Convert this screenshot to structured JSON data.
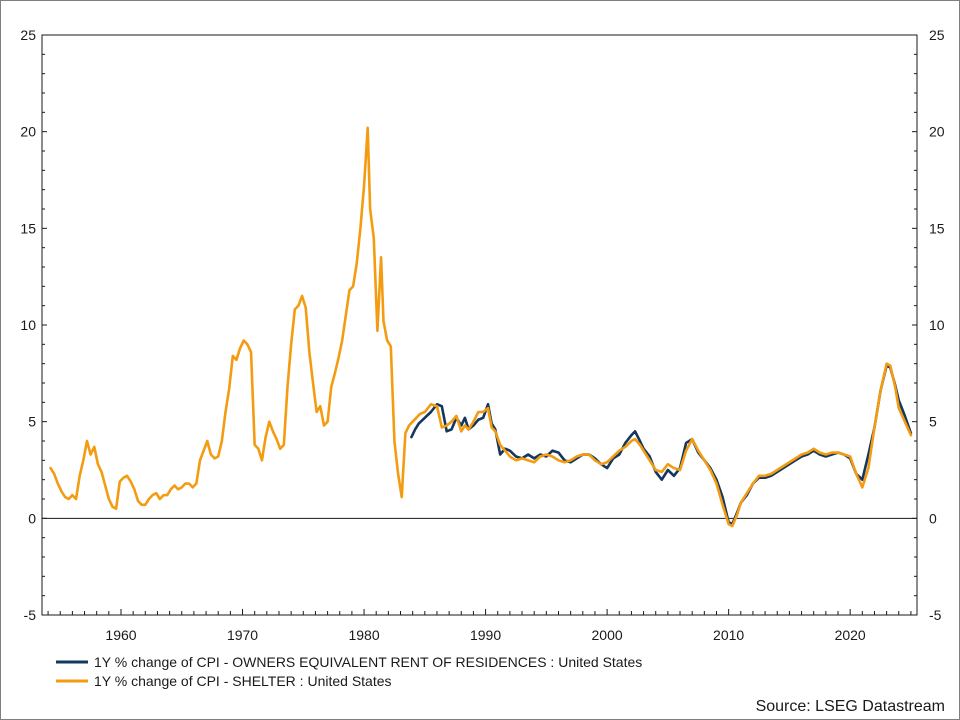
{
  "chart_data": {
    "type": "line",
    "title": "",
    "xlabel": "",
    "ylabel": "",
    "xlim": [
      1953.5,
      2025.5
    ],
    "ylim": [
      -5,
      25
    ],
    "yticks": [
      -5,
      0,
      5,
      10,
      15,
      20,
      25
    ],
    "xticks": [
      1960,
      1970,
      1980,
      1990,
      2000,
      2010,
      2020
    ],
    "grid": false,
    "zero_line": true,
    "y_axis_right_mirror": true,
    "legend_position": "bottom-left",
    "source": "Source: LSEG Datastream",
    "series": [
      {
        "name": "1Y % change of CPI - OWNERS EQUIVALENT RENT OF RESIDENCES : United States",
        "color": "#14375e",
        "x": [
          1983.9,
          1984.2,
          1984.5,
          1985,
          1985.5,
          1986,
          1986.4,
          1986.8,
          1987.2,
          1987.6,
          1988,
          1988.3,
          1988.6,
          1989,
          1989.4,
          1989.8,
          1990.2,
          1990.5,
          1990.8,
          1991.2,
          1991.6,
          1992,
          1992.5,
          1993,
          1993.5,
          1994,
          1994.5,
          1995,
          1995.5,
          1996,
          1996.5,
          1997,
          1997.5,
          1998,
          1998.5,
          1999,
          1999.5,
          2000,
          2000.5,
          2001,
          2001.5,
          2002,
          2002.3,
          2002.7,
          2003,
          2003.5,
          2004,
          2004.5,
          2005,
          2005.5,
          2006,
          2006.5,
          2007,
          2007.5,
          2008,
          2008.5,
          2009,
          2009.5,
          2010,
          2010.3,
          2010.7,
          2011,
          2011.5,
          2012,
          2012.5,
          2013,
          2013.5,
          2014,
          2014.5,
          2015,
          2015.5,
          2016,
          2016.5,
          2017,
          2017.5,
          2018,
          2018.5,
          2019,
          2019.5,
          2020,
          2020.5,
          2021,
          2021.5,
          2022,
          2022.5,
          2023,
          2023.3,
          2023.7,
          2024,
          2024.5,
          2025
        ],
        "values": [
          4.2,
          4.6,
          4.9,
          5.2,
          5.5,
          5.9,
          5.8,
          4.5,
          4.6,
          5.2,
          4.8,
          5.2,
          4.6,
          4.8,
          5.1,
          5.2,
          5.9,
          4.9,
          4.6,
          3.3,
          3.6,
          3.5,
          3.2,
          3.1,
          3.3,
          3.1,
          3.3,
          3.2,
          3.5,
          3.4,
          3.0,
          2.9,
          3.1,
          3.3,
          3.3,
          3.1,
          2.8,
          2.6,
          3.1,
          3.3,
          3.9,
          4.3,
          4.5,
          4.0,
          3.6,
          3.2,
          2.4,
          2.0,
          2.5,
          2.2,
          2.6,
          3.9,
          4.1,
          3.4,
          3.0,
          2.6,
          2.0,
          1.1,
          -0.2,
          -0.3,
          0.3,
          0.8,
          1.2,
          1.8,
          2.1,
          2.1,
          2.2,
          2.4,
          2.6,
          2.8,
          3.0,
          3.2,
          3.3,
          3.5,
          3.3,
          3.2,
          3.3,
          3.4,
          3.3,
          3.1,
          2.3,
          2.0,
          3.3,
          4.7,
          6.6,
          7.9,
          7.8,
          6.9,
          6.1,
          5.3,
          4.4
        ]
      },
      {
        "name": "1Y % change of CPI - SHELTER : United States",
        "color": "#f39c12",
        "x": [
          1954.2,
          1954.5,
          1954.8,
          1955.1,
          1955.4,
          1955.7,
          1956,
          1956.3,
          1956.6,
          1956.9,
          1957.2,
          1957.5,
          1957.8,
          1958.1,
          1958.4,
          1958.7,
          1959,
          1959.3,
          1959.6,
          1959.9,
          1960.2,
          1960.5,
          1960.8,
          1961.1,
          1961.4,
          1961.7,
          1962,
          1962.3,
          1962.6,
          1962.9,
          1963.2,
          1963.5,
          1963.8,
          1964.1,
          1964.4,
          1964.7,
          1965,
          1965.3,
          1965.6,
          1965.9,
          1966.2,
          1966.5,
          1966.8,
          1967.1,
          1967.4,
          1967.7,
          1968,
          1968.3,
          1968.6,
          1968.9,
          1969.2,
          1969.5,
          1969.8,
          1970.1,
          1970.4,
          1970.7,
          1971,
          1971.3,
          1971.6,
          1971.9,
          1972.2,
          1972.5,
          1972.8,
          1973.1,
          1973.4,
          1973.7,
          1974,
          1974.3,
          1974.6,
          1974.9,
          1975.2,
          1975.5,
          1975.8,
          1976.1,
          1976.4,
          1976.7,
          1977,
          1977.3,
          1977.6,
          1977.9,
          1978.2,
          1978.5,
          1978.8,
          1979.1,
          1979.4,
          1979.7,
          1980,
          1980.3,
          1980.5,
          1980.8,
          1981.1,
          1981.4,
          1981.6,
          1981.9,
          1982.2,
          1982.5,
          1982.8,
          1983.1,
          1983.4,
          1983.7,
          1984,
          1984.3,
          1984.6,
          1985,
          1985.5,
          1986,
          1986.4,
          1986.8,
          1987.2,
          1987.6,
          1988,
          1988.3,
          1988.6,
          1989,
          1989.4,
          1989.8,
          1990.2,
          1990.5,
          1990.8,
          1991.2,
          1991.6,
          1992,
          1992.5,
          1993,
          1993.5,
          1994,
          1994.5,
          1995,
          1995.5,
          1996,
          1996.5,
          1997,
          1997.5,
          1998,
          1998.5,
          1999,
          1999.5,
          2000,
          2000.5,
          2001,
          2001.5,
          2002,
          2002.3,
          2002.7,
          2003,
          2003.5,
          2004,
          2004.5,
          2005,
          2005.5,
          2006,
          2006.5,
          2007,
          2007.5,
          2008,
          2008.5,
          2009,
          2009.5,
          2010,
          2010.3,
          2010.7,
          2011,
          2011.5,
          2012,
          2012.5,
          2013,
          2013.5,
          2014,
          2014.5,
          2015,
          2015.5,
          2016,
          2016.5,
          2017,
          2017.5,
          2018,
          2018.5,
          2019,
          2019.5,
          2020,
          2020.5,
          2021,
          2021.5,
          2022,
          2022.5,
          2023,
          2023.3,
          2023.7,
          2024,
          2024.5,
          2025
        ],
        "values": [
          2.6,
          2.3,
          1.8,
          1.4,
          1.1,
          1.0,
          1.2,
          1.0,
          2.2,
          3.0,
          4.0,
          3.3,
          3.7,
          2.8,
          2.4,
          1.7,
          1.0,
          0.6,
          0.5,
          1.9,
          2.1,
          2.2,
          1.9,
          1.5,
          0.9,
          0.7,
          0.7,
          1.0,
          1.2,
          1.3,
          1.0,
          1.2,
          1.2,
          1.5,
          1.7,
          1.5,
          1.6,
          1.8,
          1.8,
          1.6,
          1.8,
          3.0,
          3.5,
          4.0,
          3.3,
          3.1,
          3.2,
          4.0,
          5.5,
          6.7,
          8.4,
          8.2,
          8.8,
          9.2,
          9.0,
          8.6,
          3.8,
          3.6,
          3.0,
          4.2,
          5.0,
          4.5,
          4.1,
          3.6,
          3.8,
          6.8,
          9.0,
          10.8,
          11.0,
          11.5,
          10.9,
          8.6,
          7.0,
          5.5,
          5.8,
          4.8,
          5.0,
          6.8,
          7.5,
          8.3,
          9.2,
          10.5,
          11.8,
          12.0,
          13.2,
          15.0,
          17.2,
          20.2,
          16.0,
          14.5,
          9.7,
          13.5,
          10.2,
          9.2,
          8.9,
          4.0,
          2.3,
          1.1,
          4.4,
          4.8,
          5.0,
          5.2,
          5.4,
          5.5,
          5.9,
          5.8,
          4.7,
          4.8,
          5.0,
          5.3,
          4.5,
          4.8,
          4.6,
          5.0,
          5.5,
          5.5,
          5.7,
          4.7,
          4.5,
          3.8,
          3.5,
          3.2,
          3.0,
          3.1,
          3.0,
          2.9,
          3.2,
          3.3,
          3.2,
          3.0,
          2.9,
          3.0,
          3.2,
          3.3,
          3.3,
          3.0,
          2.8,
          2.9,
          3.2,
          3.5,
          3.7,
          4.0,
          4.1,
          3.8,
          3.5,
          3.0,
          2.5,
          2.4,
          2.8,
          2.6,
          2.5,
          3.5,
          4.1,
          3.5,
          3.0,
          2.5,
          1.8,
          0.7,
          -0.3,
          -0.4,
          0.2,
          0.8,
          1.3,
          1.8,
          2.2,
          2.2,
          2.3,
          2.5,
          2.7,
          2.9,
          3.1,
          3.3,
          3.4,
          3.6,
          3.4,
          3.3,
          3.4,
          3.4,
          3.3,
          3.2,
          2.3,
          1.6,
          2.6,
          4.7,
          6.6,
          8.0,
          7.9,
          6.8,
          5.7,
          5.0,
          4.3
        ]
      }
    ]
  }
}
